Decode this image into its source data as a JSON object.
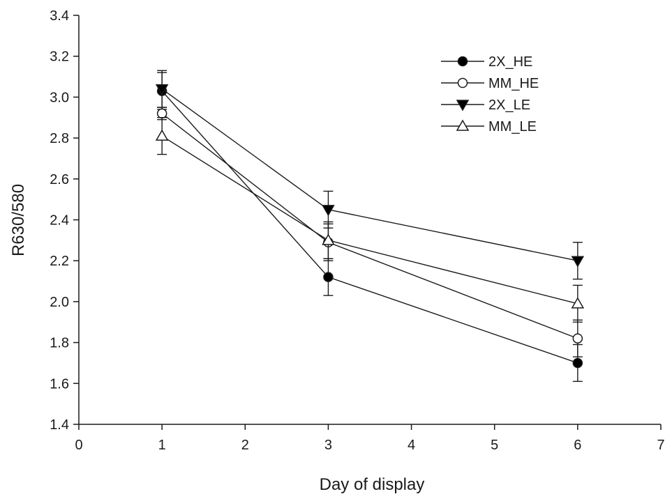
{
  "chart_data": {
    "type": "line",
    "title": "",
    "xlabel": "Day of display",
    "ylabel": "R630/580",
    "xlim": [
      0,
      7
    ],
    "ylim": [
      1.4,
      3.4
    ],
    "xticks": [
      0,
      1,
      2,
      3,
      4,
      5,
      6,
      7
    ],
    "xtick_labels": [
      "0",
      "1",
      "2",
      "3",
      "4",
      "5",
      "6",
      "7"
    ],
    "yticks": [
      1.4,
      1.6,
      1.8,
      2.0,
      2.2,
      2.4,
      2.6,
      2.8,
      3.0,
      3.2,
      3.4
    ],
    "ytick_labels": [
      "1.4",
      "1.6",
      "1.8",
      "2.0",
      "2.2",
      "2.4",
      "2.6",
      "2.8",
      "3.0",
      "3.2",
      "3.4"
    ],
    "grid": false,
    "legend_position": "top-right",
    "x": [
      1,
      3,
      6
    ],
    "series": [
      {
        "name": "2X_HE",
        "marker": "circle-filled",
        "values": [
          3.03,
          2.12,
          1.7
        ],
        "errors": [
          0.09,
          0.09,
          0.09
        ]
      },
      {
        "name": "MM_HE",
        "marker": "circle-open",
        "values": [
          2.92,
          2.29,
          1.82
        ],
        "errors": [
          0.03,
          0.09,
          0.09
        ]
      },
      {
        "name": "2X_LE",
        "marker": "triangle-down-filled",
        "values": [
          3.04,
          2.45,
          2.2
        ],
        "errors": [
          0.09,
          0.09,
          0.09
        ]
      },
      {
        "name": "MM_LE",
        "marker": "triangle-up-open",
        "values": [
          2.81,
          2.3,
          1.99
        ],
        "errors": [
          0.09,
          0.09,
          0.09
        ]
      }
    ],
    "colors": {
      "line": "#1a1a1a",
      "marker_fill": "#000000",
      "open_fill": "#ffffff"
    }
  }
}
